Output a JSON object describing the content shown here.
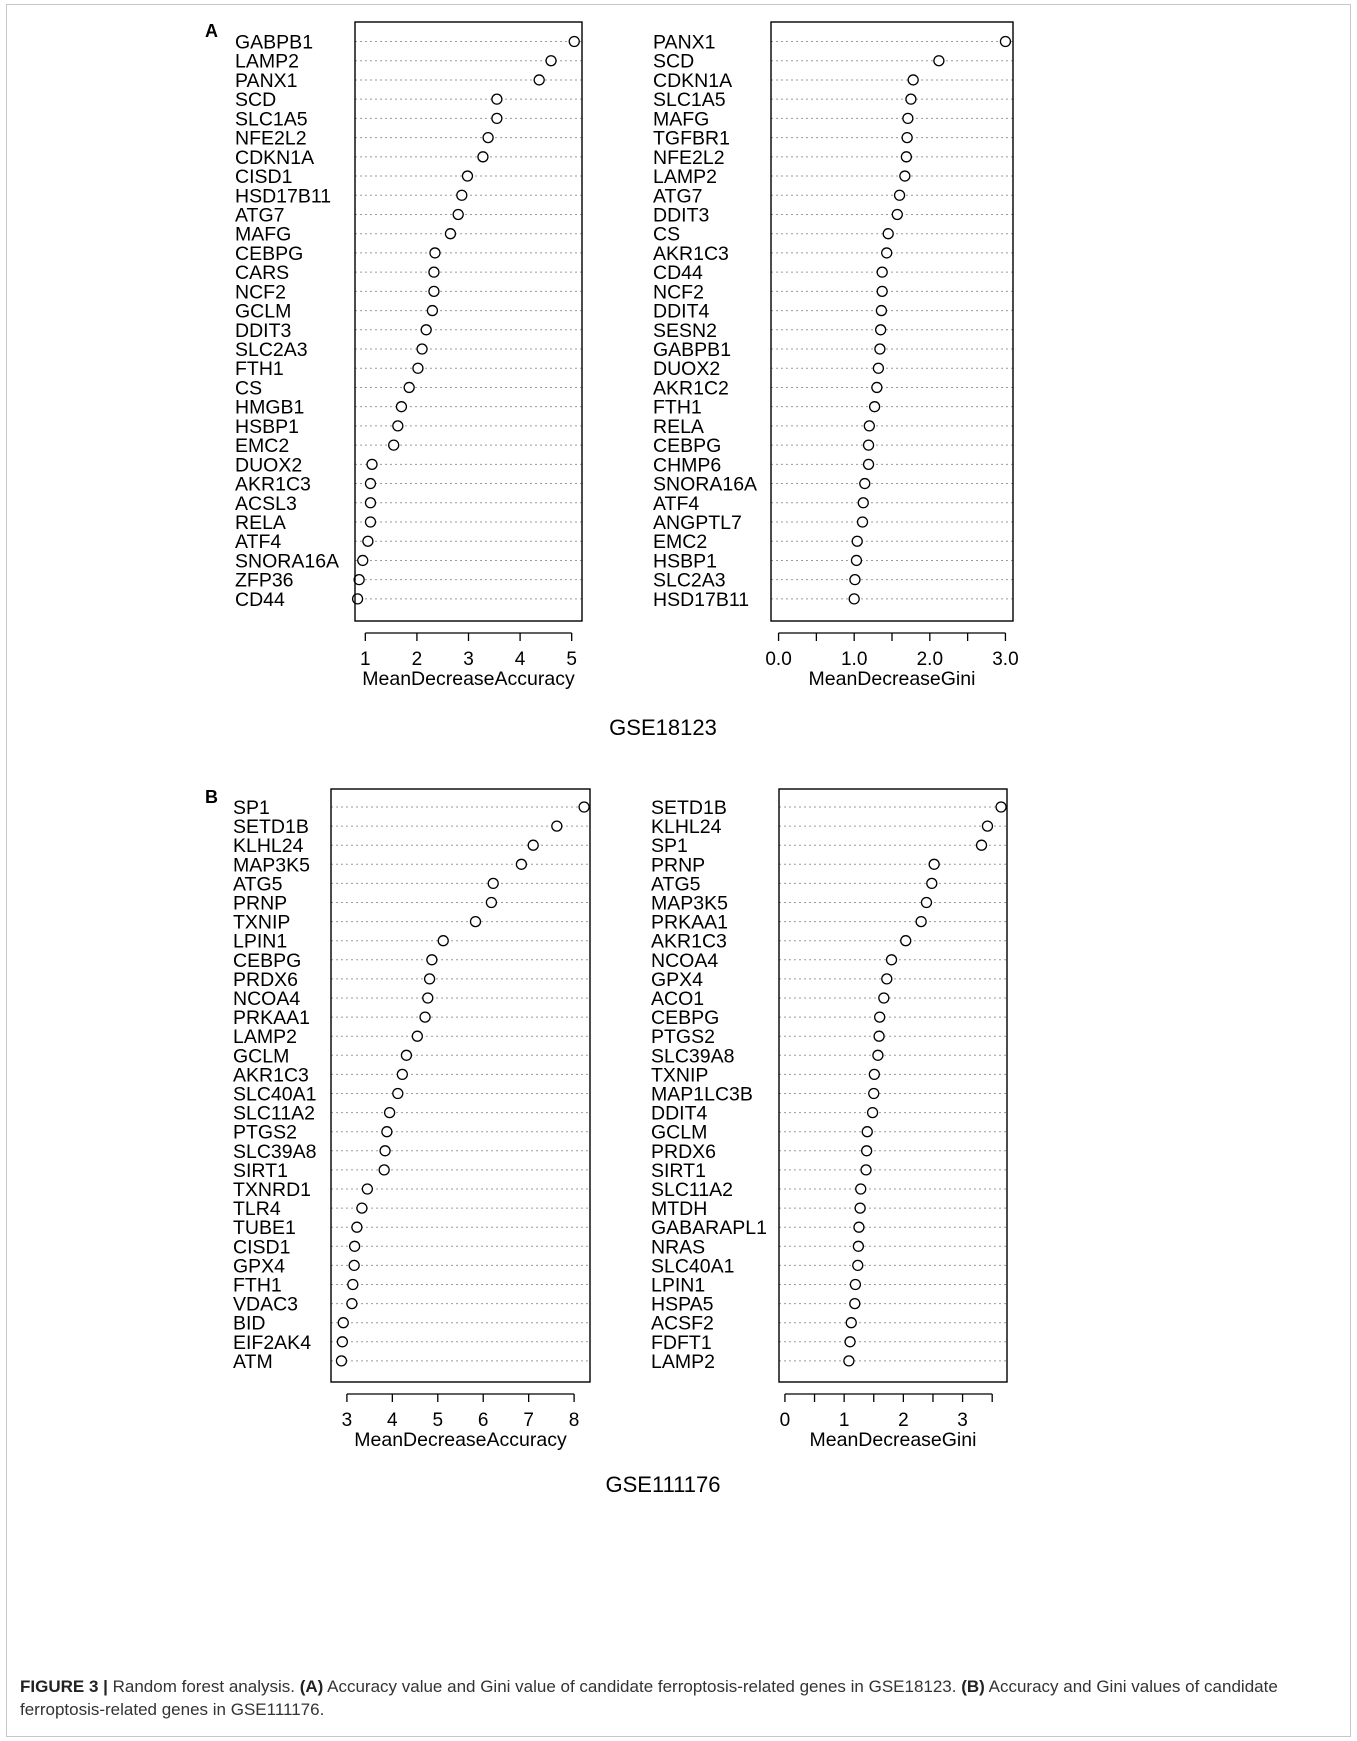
{
  "figure": {
    "caption_label": "FIGURE 3 |",
    "caption_parts": [
      {
        "text": "Random forest analysis. ",
        "bold": false
      },
      {
        "text": "(A)",
        "bold": true
      },
      {
        "text": " Accuracy value and Gini value of candidate ferroptosis-related genes in GSE18123. ",
        "bold": false
      },
      {
        "text": "(B)",
        "bold": true
      },
      {
        "text": " Accuracy and Gini values of candidate ferroptosis-related genes in GSE111176.",
        "bold": false
      }
    ]
  },
  "chart_data": [
    {
      "type": "scatter",
      "panel": "A",
      "subtitle": "GSE18123",
      "xlabel": "MeanDecreaseAccuracy",
      "xlim": [
        0.8,
        5.2
      ],
      "xticks": [
        1,
        2,
        3,
        4,
        5
      ],
      "tick_labels": [
        "1",
        "2",
        "3",
        "4",
        "5"
      ],
      "categories": [
        "GABPB1",
        "LAMP2",
        "PANX1",
        "SCD",
        "SLC1A5",
        "NFE2L2",
        "CDKN1A",
        "CISD1",
        "HSD17B11",
        "ATG7",
        "MAFG",
        "CEBPG",
        "CARS",
        "NCF2",
        "GCLM",
        "DDIT3",
        "SLC2A3",
        "FTH1",
        "CS",
        "HMGB1",
        "HSBP1",
        "EMC2",
        "DUOX2",
        "AKR1C3",
        "ACSL3",
        "RELA",
        "ATF4",
        "SNORA16A",
        "ZFP36",
        "CD44"
      ],
      "values": [
        5.05,
        4.6,
        4.37,
        3.55,
        3.55,
        3.38,
        3.28,
        2.98,
        2.87,
        2.8,
        2.65,
        2.35,
        2.33,
        2.33,
        2.3,
        2.18,
        2.1,
        2.02,
        1.85,
        1.7,
        1.63,
        1.55,
        1.13,
        1.1,
        1.1,
        1.1,
        1.05,
        0.95,
        0.88,
        0.85
      ],
      "grid": true
    },
    {
      "type": "scatter",
      "panel": "A",
      "subtitle": "GSE18123",
      "xlabel": "MeanDecreaseGini",
      "xlim": [
        -0.1,
        3.1
      ],
      "xticks": [
        0,
        0.5,
        1,
        1.5,
        2,
        2.5,
        3
      ],
      "tick_labels": [
        "0.0",
        "",
        "1.0",
        "",
        "2.0",
        "",
        "3.0"
      ],
      "categories": [
        "PANX1",
        "SCD",
        "CDKN1A",
        "SLC1A5",
        "MAFG",
        "TGFBR1",
        "NFE2L2",
        "LAMP2",
        "ATG7",
        "DDIT3",
        "CS",
        "AKR1C3",
        "CD44",
        "NCF2",
        "DDIT4",
        "SESN2",
        "GABPB1",
        "DUOX2",
        "AKR1C2",
        "FTH1",
        "RELA",
        "CEBPG",
        "CHMP6",
        "SNORA16A",
        "ATF4",
        "ANGPTL7",
        "EMC2",
        "HSBP1",
        "SLC2A3",
        "HSD17B11"
      ],
      "values": [
        3.0,
        2.12,
        1.78,
        1.75,
        1.71,
        1.7,
        1.69,
        1.67,
        1.6,
        1.57,
        1.45,
        1.43,
        1.37,
        1.37,
        1.36,
        1.35,
        1.34,
        1.32,
        1.3,
        1.27,
        1.2,
        1.19,
        1.19,
        1.14,
        1.12,
        1.11,
        1.04,
        1.03,
        1.01,
        1.0
      ],
      "grid": true
    },
    {
      "type": "scatter",
      "panel": "B",
      "subtitle": "GSE111176",
      "xlabel": "MeanDecreaseAccuracy",
      "xlim": [
        2.65,
        8.35
      ],
      "xticks": [
        3,
        4,
        5,
        6,
        7,
        8
      ],
      "tick_labels": [
        "3",
        "4",
        "5",
        "6",
        "7",
        "8"
      ],
      "categories": [
        "SP1",
        "SETD1B",
        "KLHL24",
        "MAP3K5",
        "ATG5",
        "PRNP",
        "TXNIP",
        "LPIN1",
        "CEBPG",
        "PRDX6",
        "NCOA4",
        "PRKAA1",
        "LAMP2",
        "GCLM",
        "AKR1C3",
        "SLC40A1",
        "SLC11A2",
        "PTGS2",
        "SLC39A8",
        "SIRT1",
        "TXNRD1",
        "TLR4",
        "TUBE1",
        "CISD1",
        "GPX4",
        "FTH1",
        "VDAC3",
        "BID",
        "EIF2AK4",
        "ATM"
      ],
      "values": [
        8.22,
        7.62,
        7.1,
        6.84,
        6.22,
        6.18,
        5.83,
        5.12,
        4.87,
        4.82,
        4.78,
        4.72,
        4.55,
        4.31,
        4.22,
        4.12,
        3.94,
        3.88,
        3.84,
        3.82,
        3.45,
        3.33,
        3.22,
        3.17,
        3.16,
        3.13,
        3.11,
        2.92,
        2.9,
        2.88
      ],
      "grid": true
    },
    {
      "type": "scatter",
      "panel": "B",
      "subtitle": "GSE111176",
      "xlabel": "MeanDecreaseGini",
      "xlim": [
        -0.1,
        3.75
      ],
      "xticks": [
        0,
        0.5,
        1,
        1.5,
        2,
        2.5,
        3,
        3.5
      ],
      "tick_labels": [
        "0",
        "",
        "1",
        "",
        "2",
        "",
        "3",
        ""
      ],
      "categories": [
        "SETD1B",
        "KLHL24",
        "SP1",
        "PRNP",
        "ATG5",
        "MAP3K5",
        "PRKAA1",
        "AKR1C3",
        "NCOA4",
        "GPX4",
        "ACO1",
        "CEBPG",
        "PTGS2",
        "SLC39A8",
        "TXNIP",
        "MAP1LC3B",
        "DDIT4",
        "GCLM",
        "PRDX6",
        "SIRT1",
        "SLC11A2",
        "MTDH",
        "GABARAPL1",
        "NRAS",
        "SLC40A1",
        "LPIN1",
        "HSPA5",
        "ACSF2",
        "FDFT1",
        "LAMP2"
      ],
      "values": [
        3.65,
        3.42,
        3.32,
        2.52,
        2.48,
        2.39,
        2.3,
        2.04,
        1.8,
        1.72,
        1.67,
        1.6,
        1.59,
        1.57,
        1.51,
        1.5,
        1.48,
        1.39,
        1.38,
        1.37,
        1.28,
        1.27,
        1.25,
        1.24,
        1.23,
        1.19,
        1.18,
        1.12,
        1.1,
        1.08
      ],
      "grid": true
    }
  ]
}
